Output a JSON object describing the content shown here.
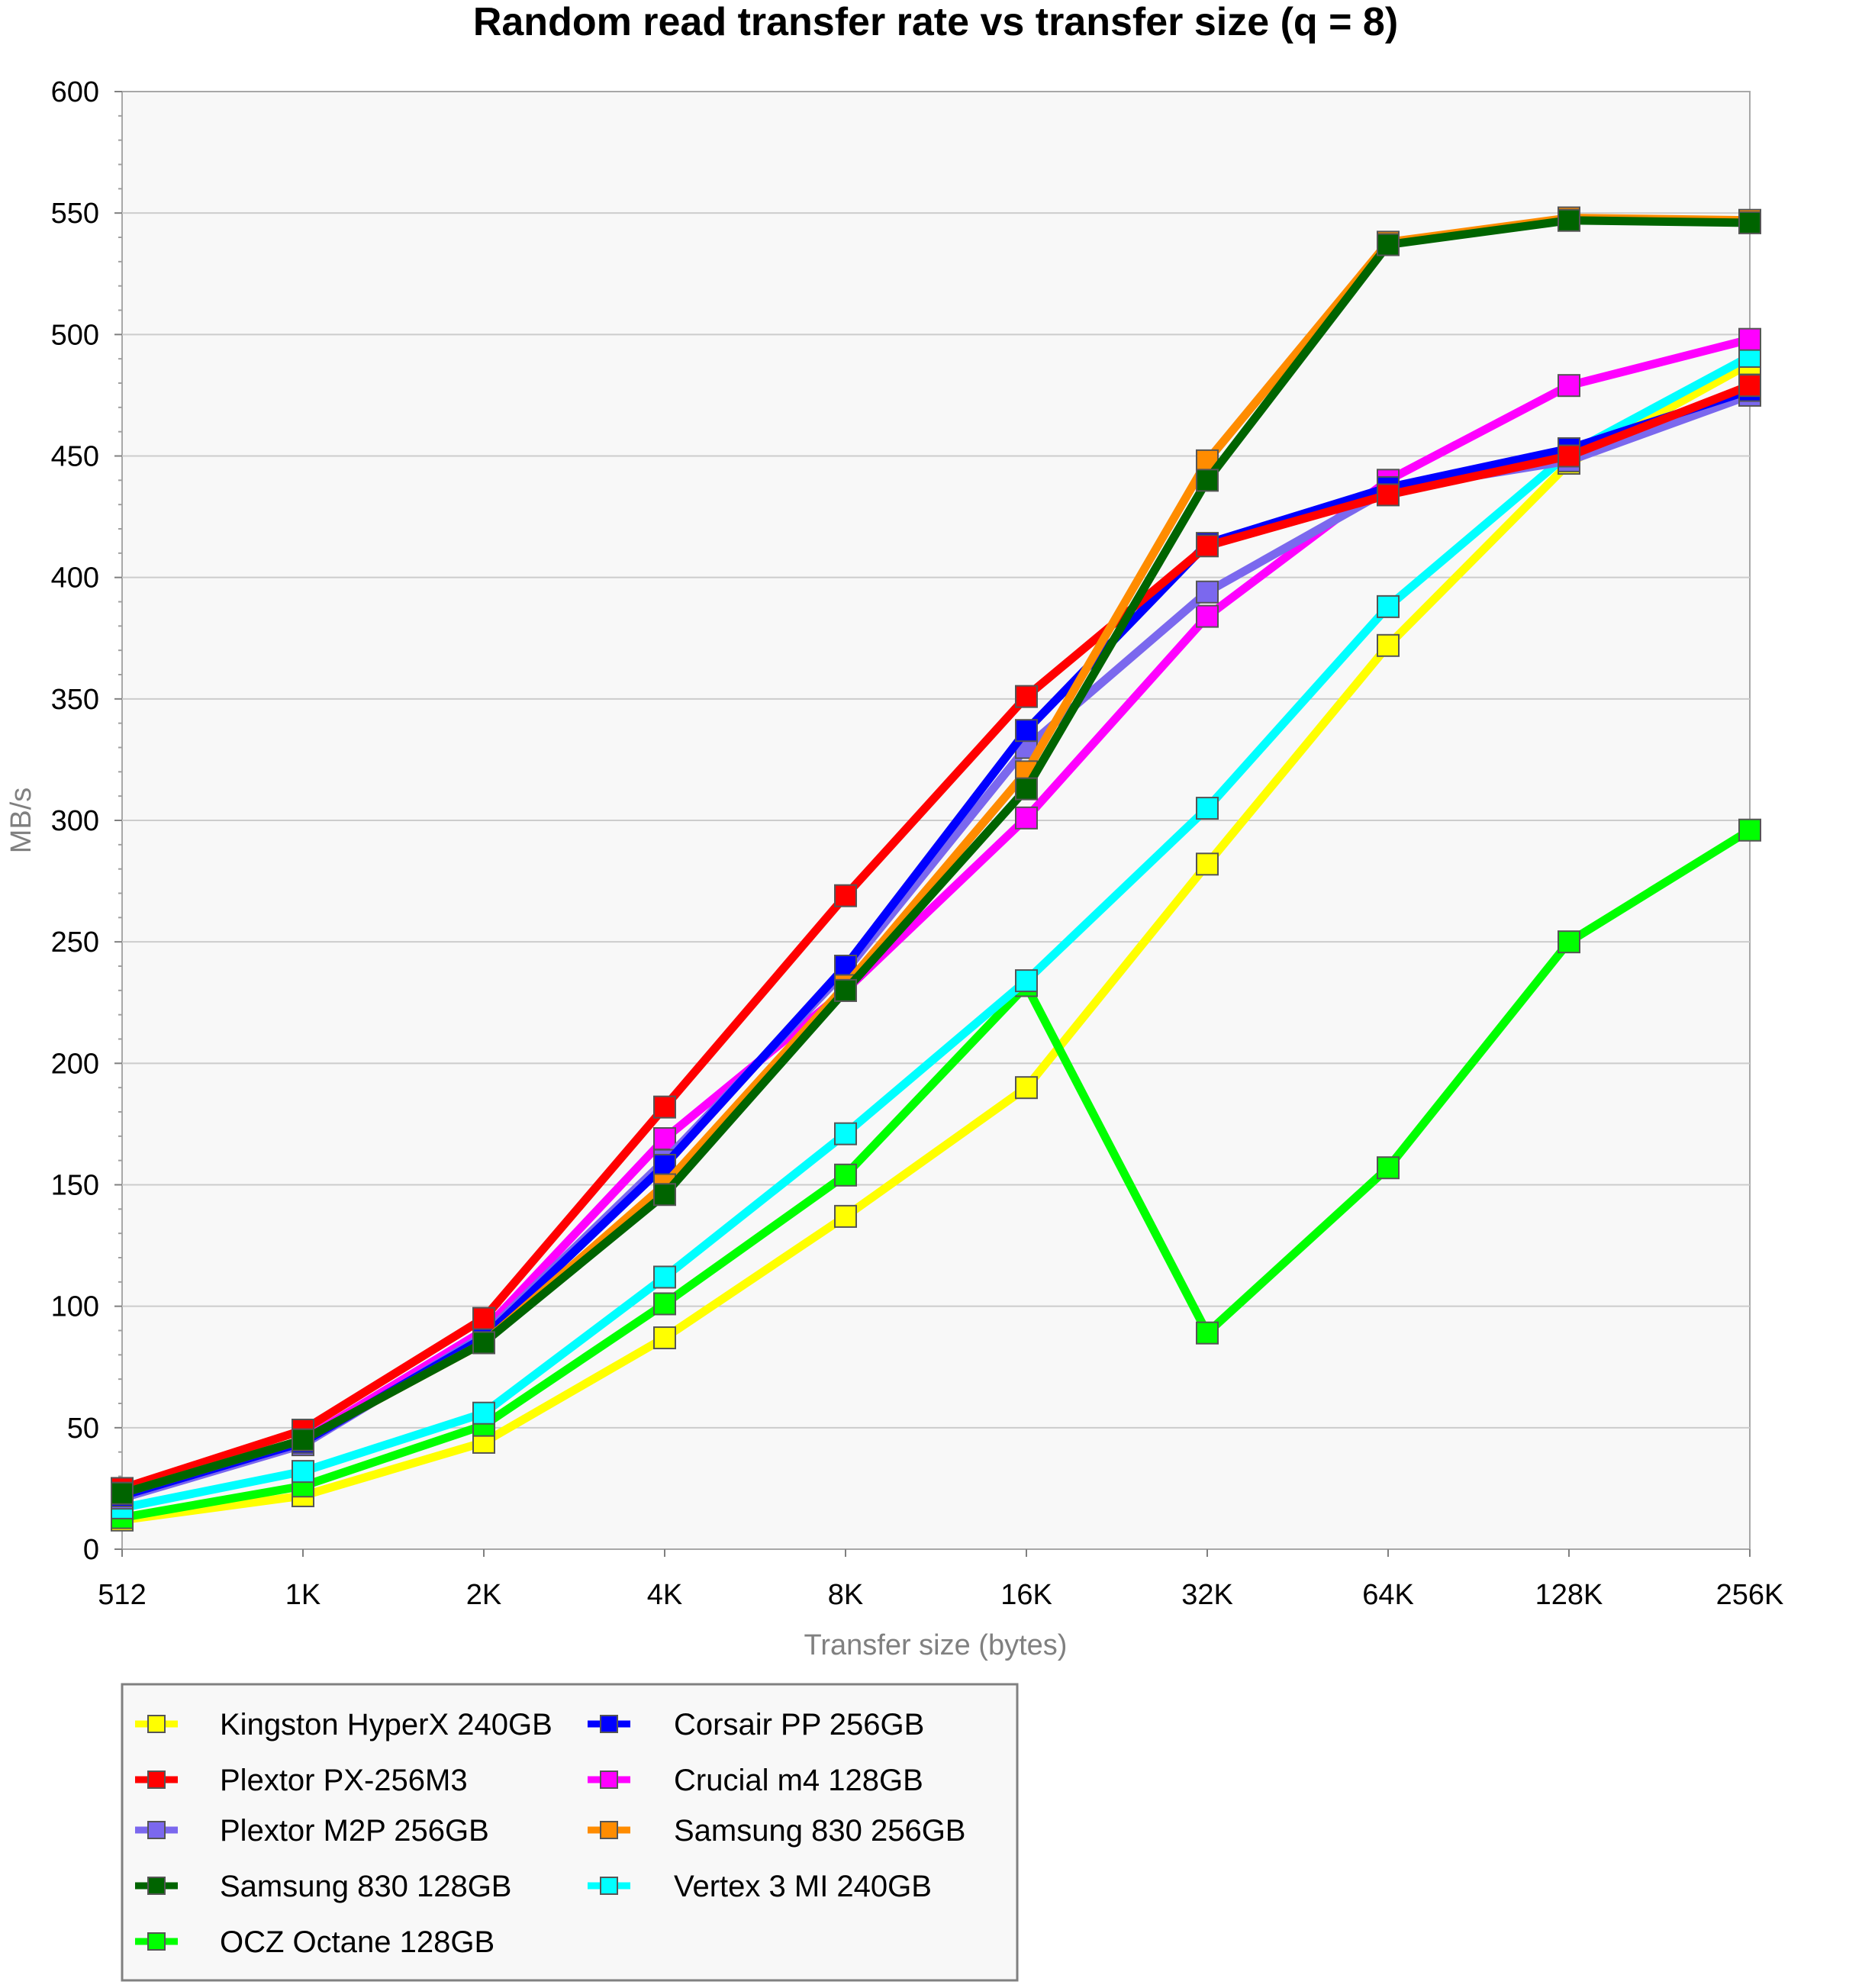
{
  "chart_data": {
    "type": "line",
    "title": "Random read transfer rate vs transfer size (q = 8)",
    "xlabel": "Transfer size (bytes)",
    "ylabel": "MB/s",
    "categories": [
      "512",
      "1K",
      "2K",
      "4K",
      "8K",
      "16K",
      "32K",
      "64K",
      "128K",
      "256K"
    ],
    "ylim": [
      0,
      600
    ],
    "yticks": [
      0,
      50,
      100,
      150,
      200,
      250,
      300,
      350,
      400,
      450,
      500,
      550,
      600
    ],
    "grid": true,
    "legend_position": "bottom-left",
    "series": [
      {
        "name": "Kingston HyperX 240GB",
        "color": "#ffff00",
        "values": [
          12,
          22,
          44,
          87,
          137,
          190,
          282,
          372,
          447,
          488
        ]
      },
      {
        "name": "Plextor PX-256M3",
        "color": "#ff0000",
        "values": [
          25,
          49,
          95,
          182,
          269,
          351,
          413,
          434,
          450,
          479
        ]
      },
      {
        "name": "Plextor M2P 256GB",
        "color": "#7b68ee",
        "values": [
          21,
          43,
          88,
          160,
          238,
          330,
          394,
          436,
          448,
          475
        ]
      },
      {
        "name": "Samsung 830 128GB",
        "color": "#006400",
        "values": [
          23,
          45,
          85,
          146,
          230,
          313,
          440,
          537,
          547,
          546
        ]
      },
      {
        "name": "OCZ Octane 128GB",
        "color": "#00ff00",
        "values": [
          13,
          26,
          51,
          101,
          154,
          232,
          89,
          157,
          250,
          296
        ]
      },
      {
        "name": "Corsair PP 256GB",
        "color": "#0000ff",
        "values": [
          22,
          44,
          87,
          158,
          240,
          337,
          414,
          437,
          453,
          477
        ]
      },
      {
        "name": "Crucial m4 128GB",
        "color": "#ff00ff",
        "values": [
          22,
          45,
          90,
          169,
          230,
          301,
          384,
          440,
          479,
          498
        ]
      },
      {
        "name": "Samsung 830 256GB",
        "color": "#ff8c00",
        "values": [
          23,
          45,
          85,
          150,
          232,
          320,
          448,
          538,
          548,
          547
        ]
      },
      {
        "name": "Vertex 3 MI 240GB",
        "color": "#00ffff",
        "values": [
          17,
          32,
          56,
          112,
          171,
          234,
          305,
          388,
          451,
          491
        ]
      }
    ]
  }
}
